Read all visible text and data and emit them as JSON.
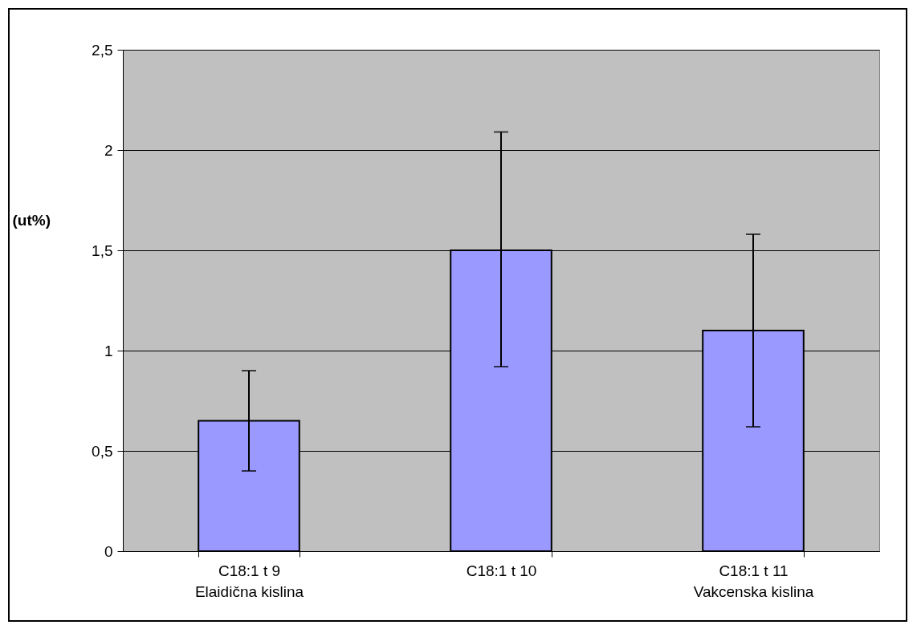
{
  "chart_data": {
    "type": "bar",
    "ylabel": "(ut%)",
    "categories": [
      "C18:1  t 9\n   Elaidična kislina",
      "C18:1  t 10",
      "C18:1  t 11\n   Vakcenska kislina"
    ],
    "values": [
      0.65,
      1.5,
      1.1
    ],
    "color": "#9999ff",
    "errors": [
      [
        0.4,
        0.9
      ],
      [
        0.92,
        2.09
      ],
      [
        0.62,
        1.58
      ]
    ],
    "ylim": [
      0,
      2.5
    ],
    "yticks": [
      0,
      {
        "value": 0.5,
        "label": "0,5"
      },
      1,
      {
        "value": 1.5,
        "label": "1,5"
      },
      2,
      {
        "value": 2.5,
        "label": "2,5"
      }
    ],
    "grid": "y"
  }
}
